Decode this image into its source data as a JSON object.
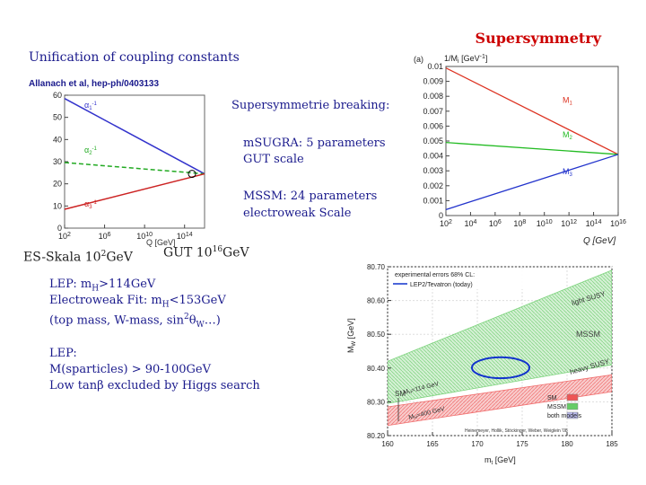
{
  "title": "Supersymmetry",
  "subtitle": "Unification of coupling constants",
  "reference": "Allanach et al, hep-ph/0403133",
  "breaking": {
    "heading": "Supersymmetrie breaking:",
    "msugra_1": "mSUGRA: 5 parameters",
    "msugra_2": "GUT scale",
    "mssm_1": "MSSM: 24 parameters",
    "mssm_2": "electroweak Scale"
  },
  "scales": {
    "es_base": "ES-Skala 10",
    "es_exp": "2",
    "es_unit": "GeV",
    "gut_base": "GUT 10",
    "gut_exp": "16",
    "gut_unit": "GeV"
  },
  "lep": {
    "line1_a": "LEP: m",
    "line1_sub": "H",
    "line1_b": ">114GeV",
    "line2_a": "Electroweak Fit: m",
    "line2_sub": "H",
    "line2_b": "<153GeV",
    "line3_a": "(top mass, W-mass, sin",
    "line3_sup": "2",
    "line3_b": "θ",
    "line3_sub": "W",
    "line3_c": "…)",
    "line4": "LEP:",
    "line5": "M(sparticles) > 90-100GeV",
    "line6": "Low tanβ excluded by Higgs search"
  },
  "chart_data": [
    {
      "type": "line",
      "title": "",
      "xlabel": "Q [GeV]",
      "ylabel": "",
      "x_scale": "log",
      "xlim": [
        100,
        1e+16
      ],
      "ylim": [
        0,
        60
      ],
      "x_ticks": [
        100,
        1000000.0,
        10000000000.0,
        100000000000000.0
      ],
      "x_tick_labels": [
        "10",
        "10",
        "10",
        "10"
      ],
      "x_tick_exps": [
        "2",
        "6",
        "10",
        "14"
      ],
      "y_ticks": [
        0,
        10,
        20,
        30,
        40,
        50,
        60
      ],
      "series": [
        {
          "name": "α1⁻¹",
          "label_base": "α",
          "label_sub": "1",
          "label_sup": "-1",
          "color": "#3333cc",
          "x": [
            100,
            2e+16
          ],
          "y": [
            58.5,
            24.5
          ]
        },
        {
          "name": "α2⁻¹",
          "label_base": "α",
          "label_sub": "2",
          "label_sup": "-1",
          "color": "#22aa22",
          "x": [
            100,
            2e+16
          ],
          "y": [
            29.6,
            24.5
          ]
        },
        {
          "name": "α3⁻¹",
          "label_base": "α",
          "label_sub": "3",
          "label_sup": "-1",
          "color": "#cc2222",
          "x": [
            100,
            2e+16
          ],
          "y": [
            8.5,
            24.5
          ]
        }
      ],
      "grid": false
    },
    {
      "type": "line",
      "title": "",
      "panel_label": "(a)",
      "ylabel": "1/M",
      "ylabel_sub": "i",
      "ylabel_unit": "[GeV",
      "ylabel_unit_sup": "-1",
      "ylabel_unit_end": "]",
      "xlabel": "Q [GeV]",
      "x_scale": "log",
      "xlim": [
        100,
        1e+16
      ],
      "ylim": [
        0,
        0.01
      ],
      "x_ticks": [
        100,
        10000.0,
        1000000.0,
        100000000.0,
        10000000000.0,
        1000000000000.0,
        100000000000000.0,
        1e+16
      ],
      "x_tick_labels": [
        "10",
        "10",
        "10",
        "10",
        "10",
        "10",
        "10",
        "10"
      ],
      "x_tick_exps": [
        "2",
        "4",
        "6",
        "8",
        "10",
        "12",
        "14",
        "16"
      ],
      "y_ticks": [
        0,
        0.001,
        0.002,
        0.003,
        0.004,
        0.005,
        0.006,
        0.007,
        0.008,
        0.009,
        0.01
      ],
      "y_tick_labels": [
        "0",
        "0.001",
        "0.002",
        "0.003",
        "0.004",
        "0.005",
        "0.006",
        "0.007",
        "0.008",
        "0.009",
        "0.01"
      ],
      "series": [
        {
          "name": "M1",
          "label_base": "M",
          "label_sub": "1",
          "color": "#dd3322",
          "x": [
            100,
            1e+16
          ],
          "y": [
            0.0099,
            0.0041
          ]
        },
        {
          "name": "M2",
          "label_base": "M",
          "label_sub": "2",
          "color": "#22bb22",
          "x": [
            100,
            1e+16
          ],
          "y": [
            0.0049,
            0.0041
          ]
        },
        {
          "name": "M3",
          "label_base": "M",
          "label_sub": "3",
          "color": "#2233cc",
          "x": [
            100,
            1e+16
          ],
          "y": [
            0.0004,
            0.0041
          ]
        }
      ],
      "grid": false
    },
    {
      "type": "area",
      "title": "",
      "xlabel": "m",
      "xlabel_sub": "t",
      "xlabel_unit": "[GeV]",
      "ylabel": "M",
      "ylabel_sub": "W",
      "ylabel_unit": "[GeV]",
      "xlim": [
        160,
        185
      ],
      "ylim": [
        80.2,
        80.7
      ],
      "x_ticks": [
        160,
        165,
        170,
        175,
        180,
        185
      ],
      "y_ticks": [
        80.2,
        80.3,
        80.4,
        80.5,
        80.6,
        80.7
      ],
      "y_tick_labels": [
        "80.20",
        "80.30",
        "80.40",
        "80.50",
        "80.60",
        "80.70"
      ],
      "legend_top": [
        "experimental errors 68% CL:",
        "LEP2/Tevatron (today)"
      ],
      "ellipse": {
        "center": [
          172.6,
          80.401
        ],
        "radius_x": 3.2,
        "radius_y": 0.031,
        "color": "#1133cc"
      },
      "series": [
        {
          "name": "SM",
          "color": "#ee5555",
          "x": [
            160,
            185
          ],
          "upper": [
            80.285,
            80.38
          ],
          "lower": [
            80.23,
            80.33
          ]
        },
        {
          "name": "MSSM",
          "color": "#66cc66",
          "x": [
            160,
            185
          ],
          "upper": [
            80.42,
            80.69
          ],
          "lower": [
            80.295,
            80.41
          ]
        }
      ],
      "band_labels": [
        "light SUSY",
        "MSSM",
        "heavy SUSY",
        "SM",
        "M",
        "=114 GeV",
        "M",
        "=400 GeV"
      ],
      "legend": {
        "entries": [
          "SM",
          "MSSM",
          "both models"
        ],
        "colors": [
          "#ee5555",
          "#66cc66",
          "#bbbbee"
        ],
        "placement": "bottom-right"
      },
      "credit": "Heinemeyer, Hollik, Stöckinger, Weber, Weiglein '08",
      "grid": true
    }
  ]
}
